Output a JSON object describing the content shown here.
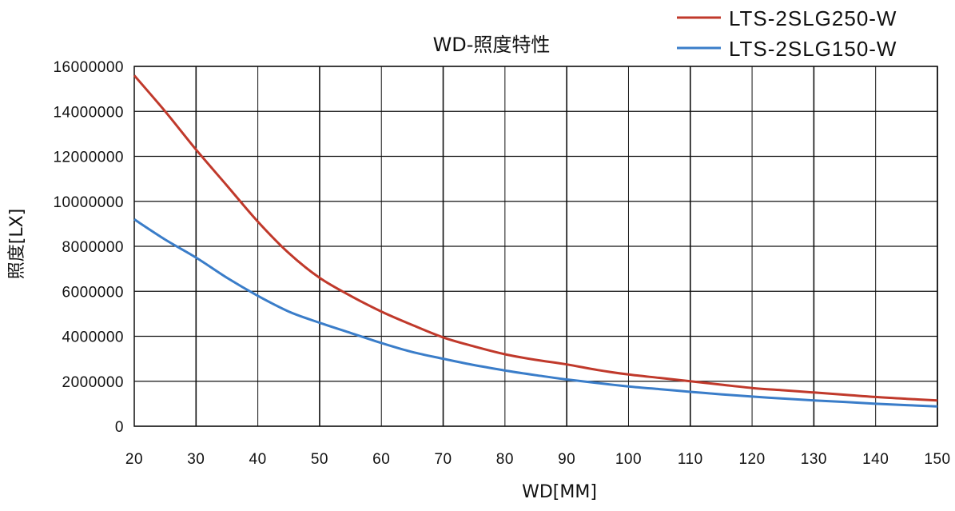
{
  "chart_data": {
    "type": "line",
    "title": "WD-照度特性",
    "xlabel": "WD[MM]",
    "ylabel": "照度[LX]",
    "xlim": [
      20,
      150
    ],
    "ylim": [
      0,
      16000000
    ],
    "x_ticks": [
      "20",
      "30",
      "40",
      "50",
      "60",
      "70",
      "80",
      "90",
      "100",
      "110",
      "120",
      "130",
      "140",
      "150"
    ],
    "y_ticks": [
      "0",
      "2000000",
      "4000000",
      "6000000",
      "8000000",
      "10000000",
      "12000000",
      "14000000",
      "16000000"
    ],
    "grid": true,
    "legend_position": "top-right",
    "series": [
      {
        "name": "LTS-2SLG250-W",
        "color": "#c0392b",
        "x": [
          20,
          25,
          30,
          35,
          40,
          45,
          50,
          55,
          60,
          65,
          70,
          75,
          80,
          85,
          90,
          95,
          100,
          105,
          110,
          115,
          120,
          125,
          130,
          135,
          140,
          145,
          150
        ],
        "y": [
          15600000,
          14000000,
          12300000,
          10700000,
          9100000,
          7700000,
          6600000,
          5800000,
          5100000,
          4500000,
          3950000,
          3550000,
          3200000,
          2950000,
          2750000,
          2500000,
          2300000,
          2150000,
          2000000,
          1850000,
          1700000,
          1600000,
          1500000,
          1400000,
          1300000,
          1220000,
          1150000
        ]
      },
      {
        "name": "LTS-2SLG150-W",
        "color": "#3a7dc9",
        "x": [
          20,
          25,
          30,
          35,
          40,
          45,
          50,
          55,
          60,
          65,
          70,
          75,
          80,
          85,
          90,
          95,
          100,
          105,
          110,
          115,
          120,
          125,
          130,
          135,
          140,
          145,
          150
        ],
        "y": [
          9200000,
          8300000,
          7500000,
          6600000,
          5800000,
          5100000,
          4600000,
          4150000,
          3700000,
          3300000,
          3000000,
          2720000,
          2480000,
          2270000,
          2080000,
          1920000,
          1770000,
          1650000,
          1530000,
          1420000,
          1320000,
          1230000,
          1150000,
          1080000,
          1000000,
          940000,
          880000
        ]
      }
    ]
  }
}
